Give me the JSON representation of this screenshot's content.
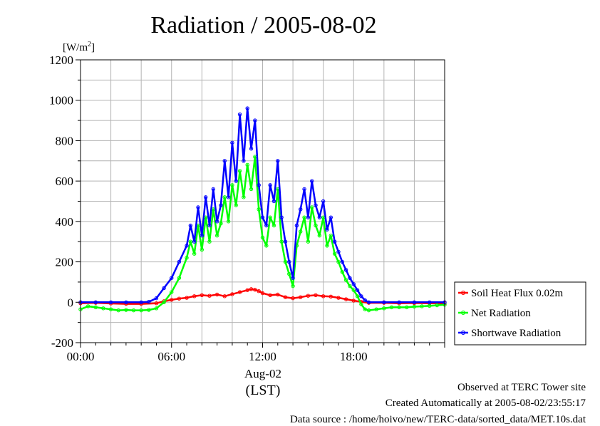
{
  "chart_data": {
    "type": "line",
    "title": "Radiation / 2005-08-02",
    "ylabel": "[W/m²]",
    "ylabel_base": "[W/m",
    "ylabel_sup": "2",
    "ylabel_end": "]",
    "ylim": [
      -200,
      1200
    ],
    "yticks": [
      -200,
      0,
      200,
      400,
      600,
      800,
      1000,
      1200
    ],
    "xlim": [
      0,
      24
    ],
    "xticks": [
      {
        "value": 0,
        "label": "00:00"
      },
      {
        "value": 6,
        "label": "06:00"
      },
      {
        "value": 12,
        "label": "12:00"
      },
      {
        "value": 18,
        "label": "18:00"
      }
    ],
    "xlabel_date": "Aug-02",
    "xlabel": "(LST)",
    "grid": true,
    "legend_position": "right-bottom",
    "series": [
      {
        "name": "Soil Heat Flux 0.02m",
        "color": "#ff0000",
        "x": [
          0,
          1,
          2,
          3,
          4,
          5,
          5.5,
          6,
          6.5,
          7,
          7.5,
          8,
          8.5,
          9,
          9.5,
          10,
          10.5,
          11,
          11.25,
          11.5,
          11.75,
          12,
          12.5,
          13,
          13.5,
          14,
          14.5,
          15,
          15.5,
          16,
          16.5,
          17,
          17.5,
          18,
          18.5,
          19,
          20,
          21,
          22,
          23,
          24
        ],
        "values": [
          -5,
          -3,
          -6,
          -8,
          -8,
          -5,
          5,
          12,
          18,
          22,
          30,
          35,
          32,
          38,
          30,
          40,
          50,
          60,
          65,
          62,
          55,
          45,
          35,
          38,
          25,
          20,
          25,
          32,
          35,
          30,
          28,
          22,
          15,
          8,
          2,
          -3,
          -3,
          -5,
          -4,
          -5,
          -5
        ]
      },
      {
        "name": "Net Radiation",
        "color": "#00ff00",
        "x": [
          0,
          0.5,
          1,
          1.5,
          2,
          2.5,
          3,
          3.5,
          4,
          4.5,
          5,
          5.5,
          6,
          6.5,
          7,
          7.25,
          7.5,
          7.75,
          8,
          8.25,
          8.5,
          8.75,
          9,
          9.25,
          9.5,
          9.75,
          10,
          10.25,
          10.5,
          10.75,
          11,
          11.25,
          11.5,
          11.75,
          12,
          12.25,
          12.5,
          12.75,
          13,
          13.25,
          13.5,
          13.75,
          14,
          14.25,
          14.5,
          14.75,
          15,
          15.25,
          15.5,
          15.75,
          16,
          16.25,
          16.5,
          16.75,
          17,
          17.25,
          17.5,
          17.75,
          18,
          18.25,
          18.5,
          18.75,
          19,
          19.5,
          20,
          20.5,
          21,
          21.5,
          22,
          22.5,
          23,
          23.5,
          24
        ],
        "values": [
          -35,
          -20,
          -25,
          -30,
          -35,
          -40,
          -38,
          -40,
          -40,
          -38,
          -30,
          0,
          50,
          120,
          220,
          300,
          240,
          380,
          260,
          420,
          300,
          460,
          330,
          390,
          520,
          400,
          580,
          480,
          650,
          520,
          680,
          560,
          720,
          460,
          320,
          280,
          420,
          380,
          560,
          300,
          200,
          140,
          80,
          280,
          350,
          420,
          300,
          470,
          380,
          330,
          420,
          280,
          330,
          240,
          200,
          150,
          110,
          80,
          60,
          30,
          -10,
          -35,
          -40,
          -35,
          -30,
          -25,
          -25,
          -25,
          -22,
          -20,
          -18,
          -15,
          -12
        ]
      },
      {
        "name": "Shortwave Radiation",
        "color": "#0000ff",
        "x": [
          0,
          1,
          2,
          3,
          4,
          4.5,
          5,
          5.5,
          6,
          6.5,
          7,
          7.25,
          7.5,
          7.75,
          8,
          8.25,
          8.5,
          8.75,
          9,
          9.25,
          9.5,
          9.75,
          10,
          10.25,
          10.5,
          10.75,
          11,
          11.25,
          11.5,
          11.75,
          12,
          12.25,
          12.5,
          12.75,
          13,
          13.25,
          13.5,
          13.75,
          14,
          14.25,
          14.5,
          14.75,
          15,
          15.25,
          15.5,
          15.75,
          16,
          16.25,
          16.5,
          16.75,
          17,
          17.25,
          17.5,
          17.75,
          18,
          18.25,
          18.5,
          18.75,
          19,
          20,
          21,
          22,
          23,
          24
        ],
        "values": [
          0,
          0,
          0,
          0,
          0,
          2,
          20,
          70,
          120,
          200,
          280,
          380,
          300,
          470,
          330,
          520,
          380,
          560,
          400,
          480,
          700,
          520,
          790,
          600,
          930,
          700,
          960,
          760,
          900,
          580,
          420,
          380,
          580,
          500,
          700,
          420,
          300,
          200,
          120,
          380,
          460,
          560,
          420,
          600,
          480,
          420,
          500,
          360,
          420,
          300,
          250,
          200,
          160,
          120,
          90,
          60,
          30,
          10,
          0,
          0,
          0,
          0,
          0,
          0
        ]
      }
    ],
    "annotations": [
      "Observed at TERC Tower site",
      "Created Automatically at 2005-08-02/23:55:17",
      "Data source : /home/hoivo/new/TERC-data/sorted_data/MET.10s.dat"
    ]
  }
}
